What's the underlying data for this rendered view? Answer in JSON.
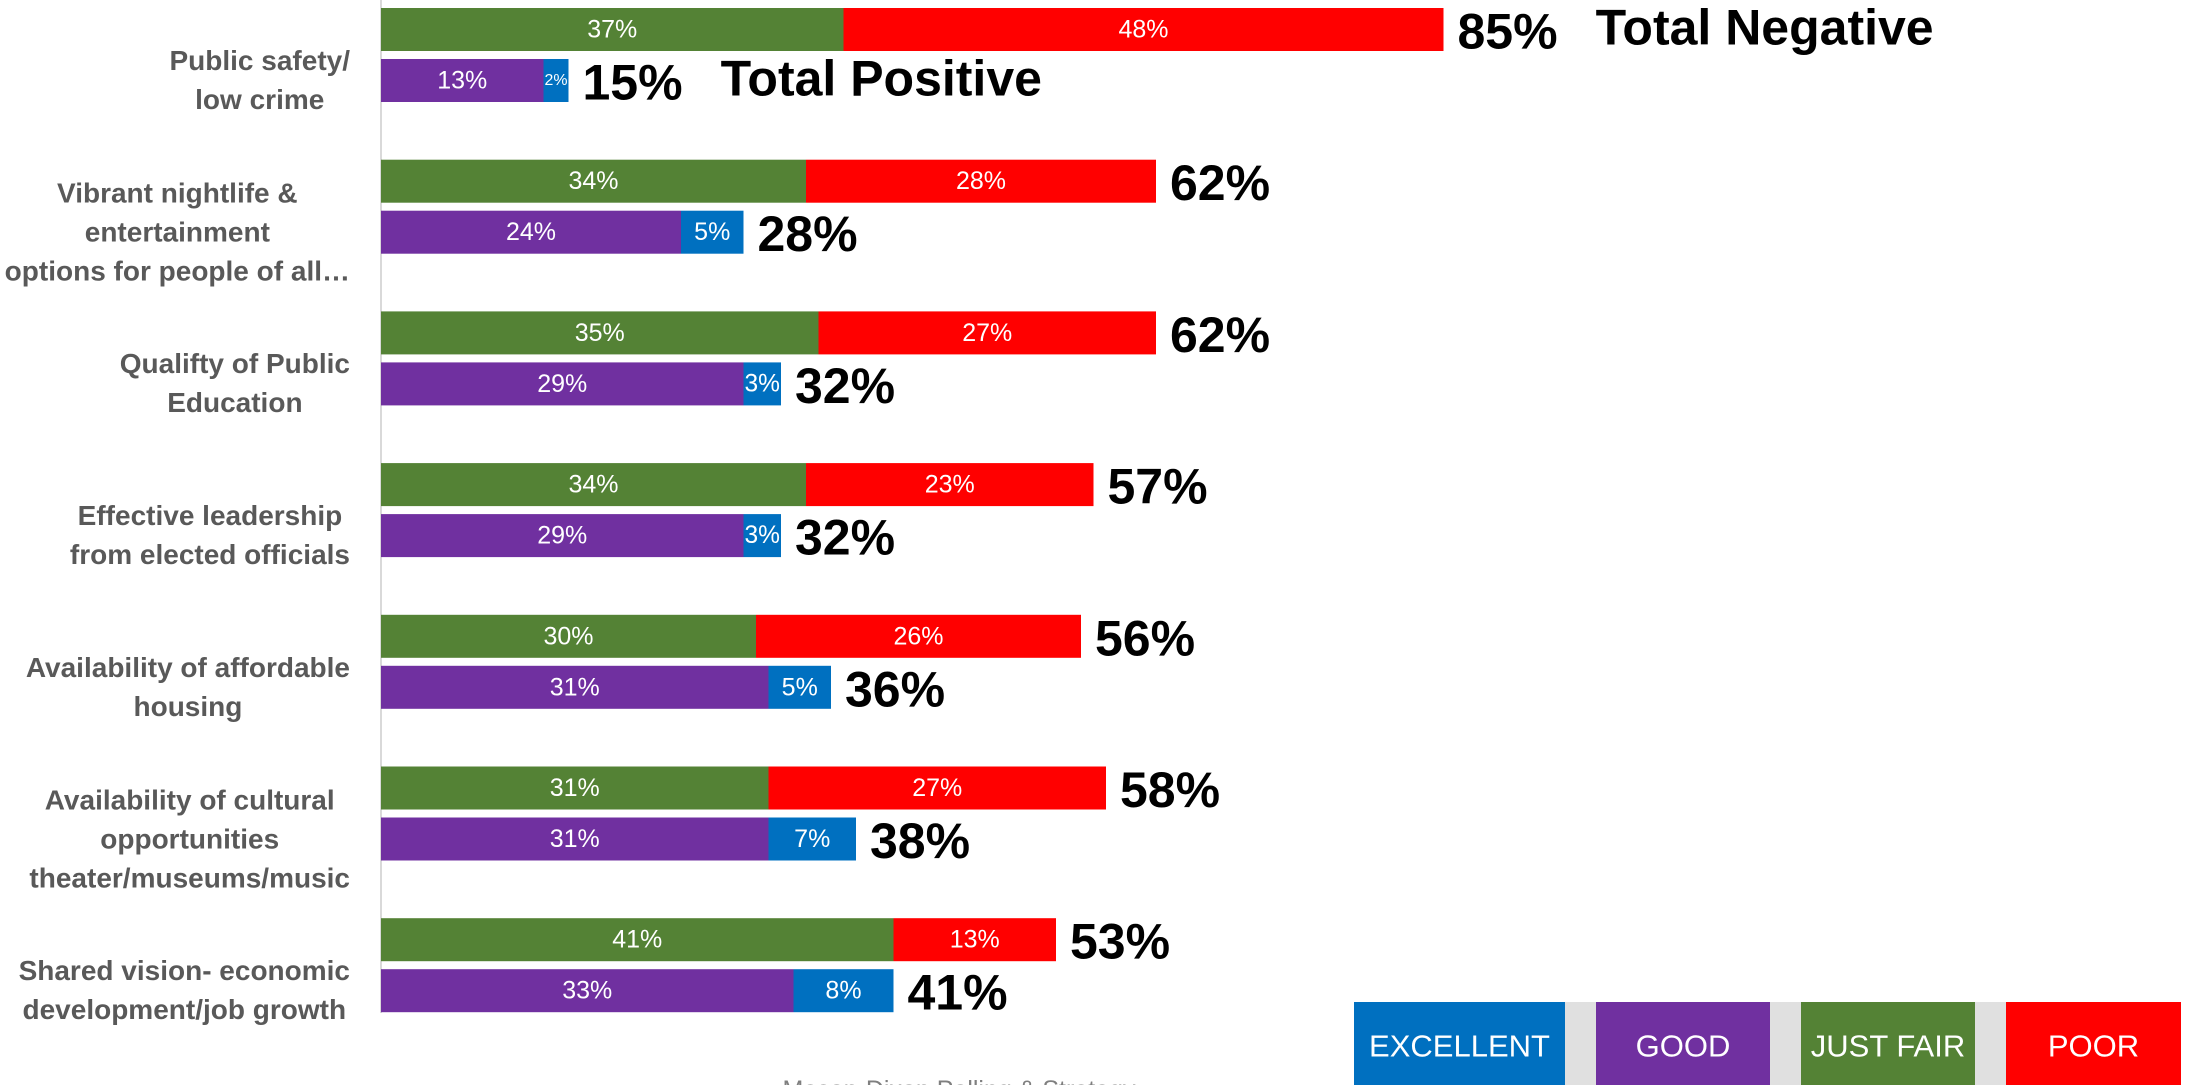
{
  "chart_data": {
    "type": "stacked-hbar-pair",
    "source": "Mason-Dixon Polling & Strategy",
    "categories": [
      "Public safety/\nlow crime",
      "Vibrant nightlife &\nentertainment\noptions for people of all…",
      "Qualifty of Public\nEducation",
      "Effective leadership\nfrom elected officials",
      "Availability of affordable\nhousing",
      "Availability of cultural\nopportunities\ntheater/museums/music",
      "Shared vision- economic\ndevelopment/job growth"
    ],
    "xlim": [
      0,
      100
    ],
    "series": [
      {
        "name": "EXCELLENT",
        "color": "#0070c0",
        "values": [
          2,
          5,
          3,
          3,
          5,
          7,
          8
        ],
        "value_labels": [
          "2%",
          "5%",
          "3%",
          "3%",
          "5%",
          "7%",
          "8%"
        ]
      },
      {
        "name": "GOOD",
        "color": "#7030a0",
        "values": [
          13,
          24,
          29,
          29,
          31,
          31,
          33
        ],
        "value_labels": [
          "13%",
          "24%",
          "29%",
          "29%",
          "31%",
          "31%",
          "33%"
        ]
      },
      {
        "name": "JUST FAIR",
        "color": "#548235",
        "values": [
          37,
          34,
          35,
          34,
          30,
          31,
          41
        ],
        "value_labels": [
          "37%",
          "34%",
          "35%",
          "34%",
          "30%",
          "31%",
          "41%"
        ]
      },
      {
        "name": "POOR",
        "color": "#ff0000",
        "values": [
          48,
          28,
          27,
          23,
          26,
          27,
          13
        ],
        "value_labels": [
          "48%",
          "28%",
          "27%",
          "23%",
          "26%",
          "27%",
          "13%"
        ]
      }
    ],
    "stacks": [
      {
        "name": "Total Negative",
        "series": [
          2,
          3
        ],
        "values": [
          85,
          62,
          62,
          57,
          56,
          58,
          53
        ],
        "value_labels": [
          "85%",
          "62%",
          "62%",
          "57%",
          "56%",
          "58%",
          "53%"
        ]
      },
      {
        "name": "Total Positive",
        "series": [
          1,
          0
        ],
        "values": [
          15,
          28,
          32,
          32,
          36,
          38,
          41
        ],
        "value_labels": [
          "15%",
          "28%",
          "32%",
          "32%",
          "36%",
          "38%",
          "41%"
        ]
      }
    ]
  }
}
